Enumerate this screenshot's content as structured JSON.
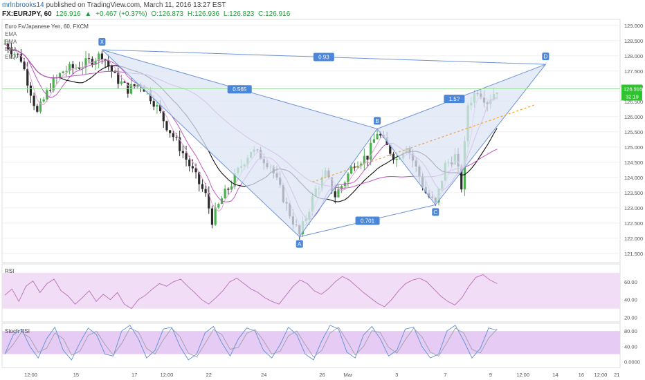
{
  "header": {
    "author": "mrlnbrooks14",
    "published_text": "published on TradingView.com, March 11, 2016 13:27 EST",
    "symbol": "FX:EURJPY, 60",
    "last": "126.916",
    "change": "+0.467 (+0.37%)",
    "open": "O:126.873",
    "high": "H:126.936",
    "low": "L:126.823",
    "close": "C:126.916"
  },
  "colors": {
    "up_candle": "#4caf50",
    "down_candle": "#2a2a2a",
    "ma_black": "#111111",
    "ma_purple": "#c157c1",
    "ma_pink": "#e0a0d8",
    "pattern_fill": "#dce6f5",
    "pattern_line": "#6f94d8",
    "label_bg": "#4a86d9",
    "price_tag": "#2fc32f",
    "rsi_band": "#f1ddf5",
    "stoch_band": "#e6cbf5",
    "target_line": "#f0a030"
  },
  "chart_data": [
    {
      "type": "candlestick",
      "title": "Euro Fx/Japanese Yen, 60, FXCM",
      "indicators": [
        "EMA",
        "EMA",
        "EMA",
        "EMA"
      ],
      "x_ticks": [
        "12:00",
        "15",
        "17",
        "12:00",
        "22",
        "24",
        "26",
        "Mar",
        "3",
        "7",
        "9",
        "12:00",
        "14",
        "16",
        "12:00",
        "21"
      ],
      "y_ticks": [
        121.5,
        122.0,
        122.5,
        123.0,
        123.5,
        124.0,
        124.5,
        125.0,
        125.5,
        126.0,
        126.5,
        127.0,
        127.5,
        128.0,
        128.5,
        129.0
      ],
      "ylim": [
        121.2,
        129.2
      ],
      "last_price_tag": "126.916",
      "countdown_tag": "32:19",
      "price_path": [
        [
          0,
          128.4
        ],
        [
          5,
          127.9
        ],
        [
          10,
          126.1
        ],
        [
          14,
          127.0
        ],
        [
          18,
          127.5
        ],
        [
          24,
          127.7
        ],
        [
          30,
          128.05
        ],
        [
          34,
          127.3
        ],
        [
          38,
          126.9
        ],
        [
          42,
          127.1
        ],
        [
          46,
          126.5
        ],
        [
          50,
          125.7
        ],
        [
          54,
          125.0
        ],
        [
          58,
          124.2
        ],
        [
          62,
          123.4
        ],
        [
          64,
          122.6
        ],
        [
          67,
          123.3
        ],
        [
          70,
          123.8
        ],
        [
          73,
          124.4
        ],
        [
          76,
          124.9
        ],
        [
          79,
          124.7
        ],
        [
          82,
          124.4
        ],
        [
          85,
          123.6
        ],
        [
          88,
          122.8
        ],
        [
          91,
          122.1
        ],
        [
          93,
          122.7
        ],
        [
          96,
          123.6
        ],
        [
          99,
          124.1
        ],
        [
          102,
          123.4
        ],
        [
          105,
          123.9
        ],
        [
          108,
          124.5
        ],
        [
          112,
          124.7
        ],
        [
          115,
          125.5
        ],
        [
          118,
          125.0
        ],
        [
          121,
          124.6
        ],
        [
          124,
          125.1
        ],
        [
          127,
          124.3
        ],
        [
          130,
          123.5
        ],
        [
          133,
          123.1
        ],
        [
          136,
          124.4
        ],
        [
          139,
          124.7
        ],
        [
          141,
          123.7
        ],
        [
          143,
          126.4
        ],
        [
          146,
          126.9
        ],
        [
          149,
          126.5
        ],
        [
          152,
          126.92
        ]
      ],
      "pattern": {
        "name": "XABCD",
        "points": [
          {
            "label": "X",
            "i": 30,
            "price": 128.2
          },
          {
            "label": "A",
            "i": 91,
            "price": 122.05
          },
          {
            "label": "B",
            "i": 115,
            "price": 125.6
          },
          {
            "label": "C",
            "i": 133,
            "price": 123.1
          },
          {
            "label": "D",
            "i": 167,
            "price": 127.72
          }
        ],
        "ratios": [
          {
            "label": "0.93",
            "between": "X-D"
          },
          {
            "label": "0.565",
            "between": "X-B"
          },
          {
            "label": "0.701",
            "between": "A-C"
          },
          {
            "label": "1.5?",
            "between": "B-D"
          }
        ]
      }
    },
    {
      "type": "line",
      "title": "RSI",
      "y_ticks": [
        20,
        40,
        60
      ],
      "band": [
        30,
        70
      ],
      "ylim": [
        15,
        80
      ],
      "series": [
        {
          "values": [
            45,
            52,
            38,
            55,
            61,
            48,
            58,
            63,
            50,
            44,
            35,
            42,
            50,
            38,
            46,
            40,
            48,
            35,
            30,
            40,
            45,
            52,
            58,
            55,
            60,
            63,
            55,
            48,
            40,
            35,
            42,
            50,
            60,
            64,
            58,
            52,
            48,
            42,
            38,
            35,
            45,
            55,
            62,
            58,
            50,
            46,
            52,
            60,
            66,
            62,
            55,
            48,
            42,
            36,
            32,
            40,
            50,
            58,
            62,
            64,
            60,
            52,
            44,
            38,
            34,
            42,
            55,
            65,
            68,
            62,
            58
          ]
        }
      ]
    },
    {
      "type": "line",
      "title": "Stoch RSI",
      "y_ticks": [
        0,
        40,
        80
      ],
      "band": [
        20,
        80
      ],
      "ylim": [
        -15,
        100
      ],
      "series": [
        {
          "values": [
            20,
            70,
            85,
            40,
            10,
            60,
            90,
            30,
            5,
            50,
            88,
            70,
            20,
            15,
            80,
            95,
            60,
            10,
            30,
            85,
            90,
            40,
            5,
            20,
            75,
            92,
            50,
            15,
            60,
            88,
            80,
            30,
            10,
            45,
            90,
            70,
            20,
            5,
            55,
            95,
            85,
            25,
            10,
            70,
            92,
            60,
            15,
            30,
            85,
            90,
            40,
            10,
            20,
            80,
            95,
            55,
            10,
            35,
            88,
            82
          ]
        }
      ]
    }
  ]
}
